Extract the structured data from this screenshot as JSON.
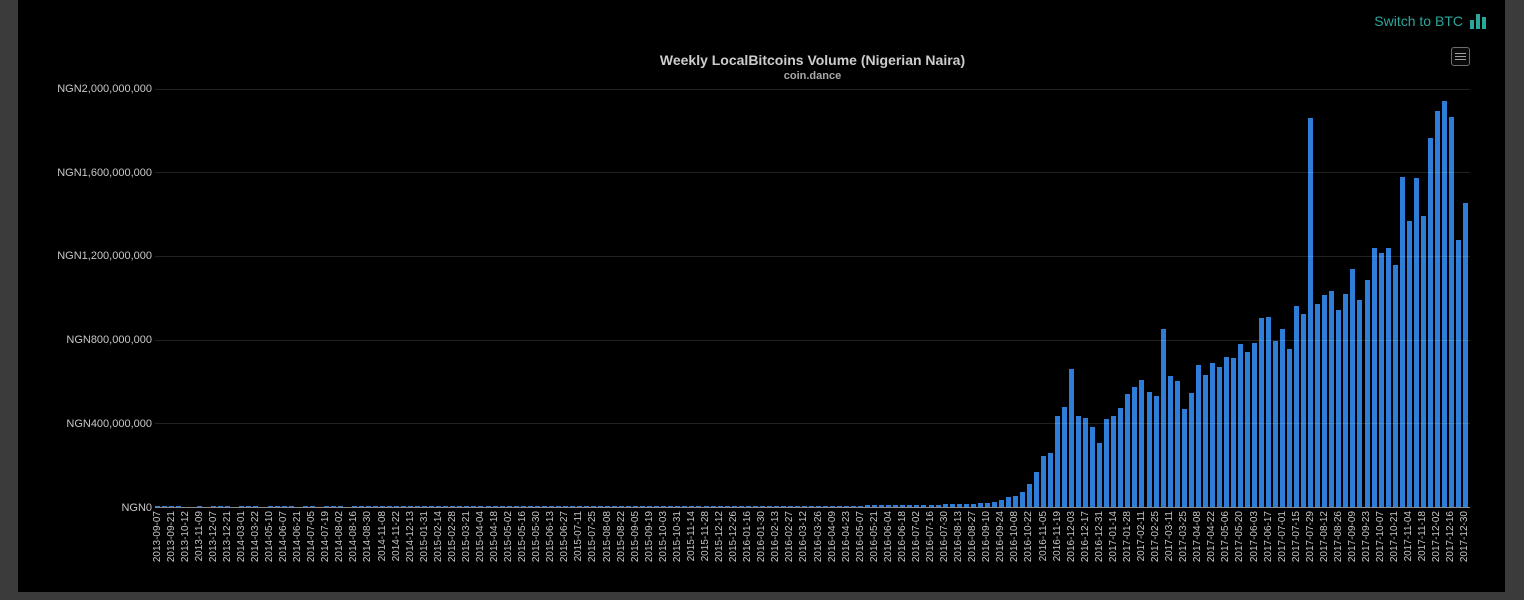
{
  "header": {
    "switch_link_label": "Switch to BTC"
  },
  "chart_data": {
    "type": "bar",
    "title": "Weekly LocalBitcoins Volume (Nigerian Naira)",
    "subtitle": "coin.dance",
    "xlabel": "",
    "ylabel": "",
    "ylim": [
      0,
      2000000000
    ],
    "grid": true,
    "legend": false,
    "bar_color": "#2e7dd8",
    "accent_color": "#2aa79b",
    "background_color": "#000000",
    "y_tick_labels": [
      "NGN0",
      "NGN400,000,000",
      "NGN800,000,000",
      "NGN1,200,000,000",
      "NGN1,600,000,000",
      "NGN2,000,000,000"
    ],
    "label_every_n_bars": 2,
    "x_tick_labels": [
      "2013-09-07",
      "2013-09-21",
      "2013-10-12",
      "2013-11-09",
      "2013-12-07",
      "2013-12-21",
      "2014-03-01",
      "2014-03-22",
      "2014-05-10",
      "2014-06-07",
      "2014-06-21",
      "2014-07-05",
      "2014-07-19",
      "2014-08-02",
      "2014-08-16",
      "2014-08-30",
      "2014-11-08",
      "2014-11-22",
      "2014-12-13",
      "2015-01-31",
      "2015-02-14",
      "2015-02-28",
      "2015-03-21",
      "2015-04-04",
      "2015-04-18",
      "2015-05-02",
      "2015-05-16",
      "2015-05-30",
      "2015-06-13",
      "2015-06-27",
      "2015-07-11",
      "2015-07-25",
      "2015-08-08",
      "2015-08-22",
      "2015-09-05",
      "2015-09-19",
      "2015-10-03",
      "2015-10-31",
      "2015-11-14",
      "2015-11-28",
      "2015-12-12",
      "2015-12-26",
      "2016-01-16",
      "2016-01-30",
      "2016-02-13",
      "2016-02-27",
      "2016-03-12",
      "2016-03-26",
      "2016-04-09",
      "2016-04-23",
      "2016-05-07",
      "2016-05-21",
      "2016-06-04",
      "2016-06-18",
      "2016-07-02",
      "2016-07-16",
      "2016-07-30",
      "2016-08-13",
      "2016-08-27",
      "2016-09-10",
      "2016-09-24",
      "2016-10-08",
      "2016-10-22",
      "2016-11-05",
      "2016-11-19",
      "2016-12-03",
      "2016-12-17",
      "2016-12-31",
      "2017-01-14",
      "2017-01-28",
      "2017-02-11",
      "2017-02-25",
      "2017-03-11",
      "2017-03-25",
      "2017-04-08",
      "2017-04-22",
      "2017-05-06",
      "2017-05-20",
      "2017-06-03",
      "2017-06-17",
      "2017-07-01",
      "2017-07-15",
      "2017-07-29",
      "2017-08-12",
      "2017-08-26",
      "2017-09-09",
      "2017-09-23",
      "2017-10-07",
      "2017-10-21",
      "2017-11-04",
      "2017-11-18",
      "2017-12-02",
      "2017-12-16",
      "2017-12-30"
    ],
    "values_unit": "millions of NGN",
    "values_millions": [
      6,
      5,
      6,
      5,
      4,
      0,
      5,
      0,
      5,
      6,
      5,
      0,
      5,
      6,
      5,
      0,
      6,
      5,
      6,
      5,
      0,
      5,
      6,
      0,
      5,
      5,
      6,
      0,
      5,
      6,
      5,
      5,
      6,
      5,
      5,
      6,
      5,
      5,
      6,
      5,
      5,
      6,
      5,
      5,
      6,
      5,
      5,
      6,
      5,
      6,
      5,
      5,
      6,
      7,
      5,
      5,
      6,
      5,
      5,
      6,
      5,
      6,
      5,
      5,
      6,
      5,
      6,
      5,
      5,
      6,
      5,
      6,
      5,
      5,
      6,
      5,
      6,
      5,
      5,
      6,
      5,
      6,
      5,
      6,
      5,
      6,
      6,
      5,
      6,
      7,
      6,
      7,
      7,
      8,
      7,
      8,
      8,
      9,
      8,
      9,
      9,
      10,
      10,
      11,
      10,
      11,
      12,
      12,
      13,
      13,
      14,
      14,
      15,
      15,
      16,
      17,
      18,
      20,
      22,
      26,
      38,
      48,
      57,
      72,
      110,
      170,
      247,
      260,
      438,
      478,
      660,
      438,
      427,
      387,
      310,
      422,
      435,
      474,
      543,
      578,
      607,
      552,
      533,
      852,
      629,
      605,
      470,
      549,
      681,
      635,
      689,
      670,
      721,
      713,
      780,
      745,
      785,
      905,
      910,
      795,
      855,
      758,
      965,
      927,
      1862,
      971,
      1014,
      1035,
      946,
      1022,
      1142,
      990,
      1089,
      1241,
      1217,
      1241,
      1161,
      1581,
      1369,
      1576,
      1392,
      1764,
      1895,
      1943,
      1868,
      1278,
      1456
    ]
  }
}
